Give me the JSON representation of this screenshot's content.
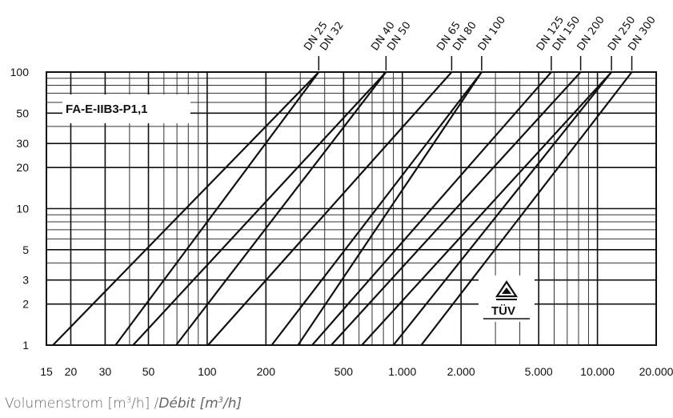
{
  "chart_data": {
    "type": "line",
    "title": "",
    "xlabel": {
      "main": "Volumenstrom [m",
      "sup1": "3",
      "mid": "/h] /",
      "italic": "Débit [m",
      "sup2": "3",
      "end": "/h]"
    },
    "ylabel": "",
    "x_scale": "log",
    "y_scale": "log",
    "xlim": [
      15,
      20000
    ],
    "ylim": [
      1,
      100
    ],
    "grid": true,
    "x_ticks": [
      {
        "value": 15,
        "label": "15"
      },
      {
        "value": 20,
        "label": "20"
      },
      {
        "value": 30,
        "label": "30"
      },
      {
        "value": 50,
        "label": "50"
      },
      {
        "value": 100,
        "label": "100"
      },
      {
        "value": 200,
        "label": "200"
      },
      {
        "value": 500,
        "label": "500"
      },
      {
        "value": 1000,
        "label": "1.000"
      },
      {
        "value": 2000,
        "label": "2.000"
      },
      {
        "value": 5000,
        "label": "5.000"
      },
      {
        "value": 10000,
        "label": "10.000"
      },
      {
        "value": 20000,
        "label": "20.000"
      }
    ],
    "y_ticks": [
      {
        "value": 1,
        "label": "1"
      },
      {
        "value": 2,
        "label": "2"
      },
      {
        "value": 3,
        "label": "3"
      },
      {
        "value": 5,
        "label": "5"
      },
      {
        "value": 10,
        "label": "10"
      },
      {
        "value": 20,
        "label": "20"
      },
      {
        "value": 30,
        "label": "30"
      },
      {
        "value": 50,
        "label": "50"
      },
      {
        "value": 100,
        "label": "100"
      }
    ],
    "series": [
      {
        "name": "DN 25",
        "x": [
          16.2,
          373
        ],
        "y": [
          1,
          100
        ]
      },
      {
        "name": "DN 32",
        "x": [
          33.9,
          373
        ],
        "y": [
          1,
          100
        ]
      },
      {
        "name": "DN 40",
        "x": [
          41.7,
          825
        ],
        "y": [
          1,
          100
        ]
      },
      {
        "name": "DN 50",
        "x": [
          69.3,
          825
        ],
        "y": [
          1,
          100
        ]
      },
      {
        "name": "DN 65",
        "x": [
          101,
          1790
        ],
        "y": [
          1,
          100
        ]
      },
      {
        "name": "DN 80",
        "x": [
          214,
          2550
        ],
        "y": [
          1,
          100
        ]
      },
      {
        "name": "DN 100",
        "x": [
          292,
          2550
        ],
        "y": [
          1,
          100
        ]
      },
      {
        "name": "DN 125",
        "x": [
          345,
          5800
        ],
        "y": [
          1,
          100
        ]
      },
      {
        "name": "DN 150",
        "x": [
          432,
          8200
        ],
        "y": [
          1,
          100
        ]
      },
      {
        "name": "DN 200",
        "x": [
          620,
          11800
        ],
        "y": [
          1,
          100
        ]
      },
      {
        "name": "DN 250",
        "x": [
          900,
          11800
        ],
        "y": [
          1,
          100
        ]
      },
      {
        "name": "DN 300",
        "x": [
          1250,
          15000
        ],
        "y": [
          1,
          100
        ]
      }
    ],
    "top_labels": [
      {
        "text": "DN 25",
        "x": 373
      },
      {
        "text": "DN 32",
        "x": 373
      },
      {
        "text": "DN 40",
        "x": 825
      },
      {
        "text": "DN 50",
        "x": 825
      },
      {
        "text": "DN 65",
        "x": 1790
      },
      {
        "text": "DN 80",
        "x": 1790
      },
      {
        "text": "DN 100",
        "x": 2550
      },
      {
        "text": "DN 125",
        "x": 5800
      },
      {
        "text": "DN 150",
        "x": 5800
      },
      {
        "text": "DN 200",
        "x": 8200
      },
      {
        "text": "DN 250",
        "x": 11800
      },
      {
        "text": "DN 300",
        "x": 15000
      }
    ],
    "annotations": {
      "model_label": "FA-E-IIB3-P1,1",
      "logo_text": "TÜV"
    },
    "colors": {
      "line": "#111111",
      "grid": "#222222",
      "axis_text": "#111111"
    }
  }
}
